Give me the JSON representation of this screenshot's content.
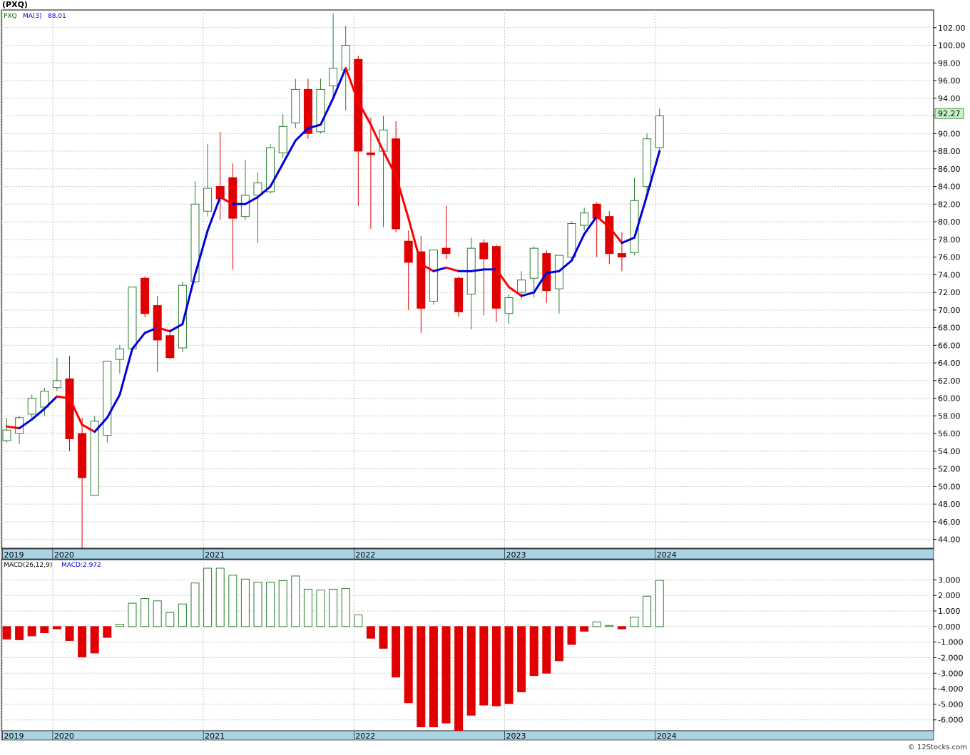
{
  "title": "(PXQ)",
  "credit": "© 12Stocks.com",
  "legend": {
    "symbol": "PXQ",
    "ma_label": "MA(3)",
    "ma_value": "88.01",
    "macd_label": "MACD(26,12,9)",
    "macd_value": "MACD:2.972",
    "last_price": "92.27"
  },
  "colors": {
    "up": "#2e7d32",
    "down": "#e00000",
    "ma_up": "#0000dd",
    "ma_down": "#ff0000",
    "grid": "#c8c8c8",
    "axis_band": "#a8d4e6",
    "price_badge": "#c6f0c6"
  },
  "chart_data": [
    {
      "type": "candlestick",
      "name": "price",
      "ylim": [
        43,
        104
      ],
      "y_ticks": [
        "44.00",
        "46.00",
        "48.00",
        "50.00",
        "52.00",
        "54.00",
        "56.00",
        "58.00",
        "60.00",
        "62.00",
        "64.00",
        "66.00",
        "68.00",
        "70.00",
        "72.00",
        "74.00",
        "76.00",
        "78.00",
        "80.00",
        "82.00",
        "84.00",
        "86.00",
        "88.00",
        "90.00",
        "92.00",
        "94.00",
        "96.00",
        "98.00",
        "100.00",
        "102.00"
      ],
      "x_labels": [
        "2019",
        "2020",
        "2021",
        "2022",
        "2023",
        "2024"
      ],
      "x_label_month_index": [
        0,
        4,
        16,
        28,
        40,
        52
      ],
      "grid": true,
      "months": [
        {
          "o": 55.2,
          "h": 57.8,
          "l": 55.0,
          "c": 56.4
        },
        {
          "o": 56.0,
          "h": 58.0,
          "l": 54.8,
          "c": 57.8
        },
        {
          "o": 58.2,
          "h": 60.4,
          "l": 57.8,
          "c": 60.0
        },
        {
          "o": 59.0,
          "h": 61.2,
          "l": 58.0,
          "c": 60.8
        },
        {
          "o": 61.2,
          "h": 64.6,
          "l": 60.8,
          "c": 62.0
        },
        {
          "o": 62.2,
          "h": 64.8,
          "l": 54.0,
          "c": 55.4
        },
        {
          "o": 56.0,
          "h": 57.8,
          "l": 43.0,
          "c": 51.0
        },
        {
          "o": 49.0,
          "h": 58.0,
          "l": 49.0,
          "c": 57.4
        },
        {
          "o": 55.8,
          "h": 64.2,
          "l": 55.0,
          "c": 64.2
        },
        {
          "o": 64.4,
          "h": 66.0,
          "l": 62.8,
          "c": 65.6
        },
        {
          "o": 65.6,
          "h": 72.6,
          "l": 65.4,
          "c": 72.6
        },
        {
          "o": 73.6,
          "h": 73.8,
          "l": 69.2,
          "c": 69.6
        },
        {
          "o": 70.5,
          "h": 71.6,
          "l": 63.0,
          "c": 66.6
        },
        {
          "o": 67.1,
          "h": 67.6,
          "l": 64.4,
          "c": 64.6
        },
        {
          "o": 65.7,
          "h": 73.2,
          "l": 65.2,
          "c": 72.8
        },
        {
          "o": 73.2,
          "h": 84.6,
          "l": 73.0,
          "c": 82.0
        },
        {
          "o": 81.2,
          "h": 88.8,
          "l": 80.6,
          "c": 83.8
        },
        {
          "o": 84.0,
          "h": 90.2,
          "l": 80.2,
          "c": 82.6
        },
        {
          "o": 85.0,
          "h": 86.6,
          "l": 74.6,
          "c": 80.4
        },
        {
          "o": 80.6,
          "h": 87.0,
          "l": 80.2,
          "c": 83.0
        },
        {
          "o": 83.0,
          "h": 85.6,
          "l": 77.6,
          "c": 84.4
        },
        {
          "o": 83.4,
          "h": 88.8,
          "l": 83.2,
          "c": 88.4
        },
        {
          "o": 87.8,
          "h": 92.2,
          "l": 87.2,
          "c": 90.8
        },
        {
          "o": 91.2,
          "h": 96.2,
          "l": 90.6,
          "c": 95.0
        },
        {
          "o": 95.0,
          "h": 96.2,
          "l": 89.4,
          "c": 90.0
        },
        {
          "o": 90.2,
          "h": 96.2,
          "l": 90.0,
          "c": 95.0
        },
        {
          "o": 95.4,
          "h": 103.6,
          "l": 94.0,
          "c": 97.4
        },
        {
          "o": 97.2,
          "h": 102.2,
          "l": 92.6,
          "c": 100.0
        },
        {
          "o": 98.4,
          "h": 98.8,
          "l": 81.8,
          "c": 88.0
        },
        {
          "o": 87.8,
          "h": 91.8,
          "l": 79.2,
          "c": 87.6
        },
        {
          "o": 88.0,
          "h": 92.0,
          "l": 79.4,
          "c": 90.4
        },
        {
          "o": 89.4,
          "h": 91.4,
          "l": 78.8,
          "c": 79.2
        },
        {
          "o": 77.8,
          "h": 79.0,
          "l": 70.0,
          "c": 75.4
        },
        {
          "o": 76.6,
          "h": 78.4,
          "l": 67.4,
          "c": 70.2
        },
        {
          "o": 71.0,
          "h": 76.4,
          "l": 70.6,
          "c": 76.8
        },
        {
          "o": 77.0,
          "h": 81.8,
          "l": 75.8,
          "c": 76.4
        },
        {
          "o": 73.6,
          "h": 73.8,
          "l": 69.2,
          "c": 69.8
        },
        {
          "o": 71.8,
          "h": 78.2,
          "l": 67.8,
          "c": 77.0
        },
        {
          "o": 77.6,
          "h": 78.0,
          "l": 69.4,
          "c": 75.8
        },
        {
          "o": 77.2,
          "h": 77.4,
          "l": 68.6,
          "c": 70.2
        },
        {
          "o": 69.6,
          "h": 71.8,
          "l": 68.4,
          "c": 71.4
        },
        {
          "o": 72.0,
          "h": 74.4,
          "l": 71.2,
          "c": 73.4
        },
        {
          "o": 73.6,
          "h": 77.2,
          "l": 71.4,
          "c": 77.0
        },
        {
          "o": 76.4,
          "h": 76.8,
          "l": 70.8,
          "c": 72.2
        },
        {
          "o": 72.4,
          "h": 76.2,
          "l": 69.6,
          "c": 76.2
        },
        {
          "o": 76.0,
          "h": 80.0,
          "l": 75.6,
          "c": 79.8
        },
        {
          "o": 79.6,
          "h": 81.6,
          "l": 79.0,
          "c": 81.0
        },
        {
          "o": 82.0,
          "h": 82.2,
          "l": 76.0,
          "c": 80.4
        },
        {
          "o": 80.6,
          "h": 81.2,
          "l": 75.2,
          "c": 76.4
        },
        {
          "o": 76.4,
          "h": 78.8,
          "l": 74.4,
          "c": 76.0
        },
        {
          "o": 76.5,
          "h": 85.0,
          "l": 76.2,
          "c": 82.4
        },
        {
          "o": 84.0,
          "h": 90.0,
          "l": 83.4,
          "c": 89.4
        },
        {
          "o": 88.4,
          "h": 92.8,
          "l": 88.0,
          "c": 92.0
        }
      ],
      "ma3": [
        56.8,
        56.6,
        57.6,
        58.8,
        60.2,
        60.0,
        57.0,
        56.2,
        57.8,
        60.4,
        65.6,
        67.4,
        68.0,
        67.6,
        68.4,
        74.0,
        79.0,
        82.8,
        82.0,
        82.0,
        82.8,
        84.0,
        86.6,
        89.2,
        90.6,
        91.0,
        94.0,
        97.4,
        93.6,
        91.0,
        88.0,
        85.2,
        80.4,
        75.2,
        74.4,
        74.8,
        74.4,
        74.4,
        74.6,
        74.6,
        72.6,
        71.6,
        72.0,
        74.2,
        74.4,
        75.6,
        78.6,
        80.6,
        79.4,
        77.6,
        78.2,
        83.0,
        88.0
      ]
    },
    {
      "type": "bar",
      "name": "MACD histogram",
      "ylim": [
        -6.7,
        4.3
      ],
      "y_ticks": [
        "-6.000",
        "-5.000",
        "-4.000",
        "-3.000",
        "-2.000",
        "-1.000",
        "0.000",
        "1.000",
        "2.000",
        "3.000"
      ],
      "values": [
        -0.8,
        -0.85,
        -0.6,
        -0.4,
        -0.15,
        -0.9,
        -1.95,
        -1.7,
        -0.7,
        0.15,
        1.5,
        1.8,
        1.65,
        0.9,
        1.45,
        2.8,
        3.75,
        3.75,
        3.3,
        3.05,
        2.85,
        2.85,
        2.95,
        3.25,
        2.4,
        2.35,
        2.4,
        2.45,
        0.75,
        -0.75,
        -1.4,
        -3.25,
        -4.9,
        -6.45,
        -6.45,
        -6.2,
        -6.7,
        -5.7,
        -5.05,
        -5.1,
        -4.95,
        -4.2,
        -3.15,
        -3.0,
        -2.2,
        -1.15,
        -0.3,
        0.3,
        0.07,
        -0.15,
        0.6,
        1.95,
        2.97
      ]
    }
  ]
}
